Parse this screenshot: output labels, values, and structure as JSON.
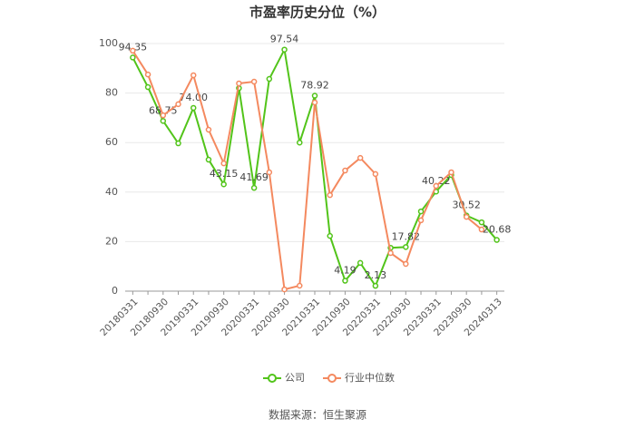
{
  "chart_data": {
    "type": "line",
    "title": "市盈率历史分位（%）",
    "source": "数据来源：恒生聚源",
    "categories": [
      "20180331",
      null,
      "20180930",
      null,
      "20190331",
      null,
      "20190930",
      null,
      "20200331",
      null,
      "20200930",
      null,
      "20210331",
      null,
      "20210930",
      null,
      "20220331",
      null,
      "20220930",
      null,
      "20230331",
      null,
      "20230930",
      null,
      "20240313"
    ],
    "series": [
      {
        "name": "公司",
        "color": "#52c41a",
        "values": [
          94.35,
          82.4,
          68.75,
          59.7,
          74.0,
          53.1,
          43.15,
          82,
          41.69,
          85.7,
          97.54,
          60,
          78.92,
          22.3,
          4.19,
          11.4,
          2.13,
          17.5,
          17.82,
          32.2,
          40.22,
          46.9,
          30.52,
          27.8,
          20.68
        ],
        "value_labels": [
          "94.35",
          null,
          "68.75",
          null,
          "74.00",
          null,
          "43.15",
          null,
          "41.69",
          null,
          "97.54",
          null,
          "78.92",
          null,
          "4.19",
          null,
          "2.13",
          null,
          "17.82",
          null,
          "40.22",
          null,
          "30.52",
          null,
          "20.68"
        ]
      },
      {
        "name": "行业中位数",
        "color": "#f4895f",
        "values": [
          97.1,
          87.5,
          71,
          75.5,
          87.2,
          65.2,
          51.6,
          83.9,
          84.6,
          48,
          0.7,
          2.2,
          76.2,
          38.8,
          48.7,
          53.8,
          47.3,
          15.4,
          11,
          28.6,
          42.5,
          48,
          30,
          24.9,
          null
        ]
      }
    ],
    "ylim": [
      0,
      100
    ],
    "yticks": [
      0,
      20,
      40,
      60,
      80,
      100
    ],
    "grid": true,
    "legend": "bottom"
  }
}
